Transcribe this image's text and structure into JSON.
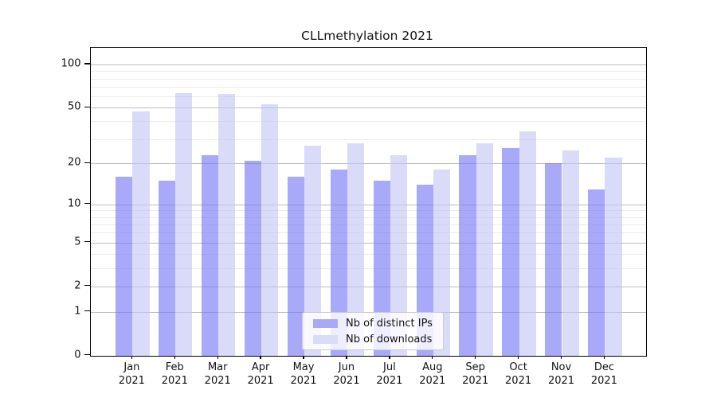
{
  "chart_data": {
    "type": "bar",
    "title": "CLLmethylation 2021",
    "categories": [
      "Jan",
      "Feb",
      "Mar",
      "Apr",
      "May",
      "Jun",
      "Jul",
      "Aug",
      "Sep",
      "Oct",
      "Nov",
      "Dec"
    ],
    "category_year": "2021",
    "series": [
      {
        "name": "Nb of distinct IPs",
        "swatch_color": "#a8aaf5",
        "bar_color": "rgba(115,117,243,0.62)",
        "values": [
          16,
          15,
          23,
          21,
          16,
          18,
          15,
          14,
          23,
          26,
          20,
          13
        ]
      },
      {
        "name": "Nb of downloads",
        "swatch_color": "#d9dbf9",
        "bar_color": "rgba(194,197,246,0.62)",
        "values": [
          47,
          63,
          62,
          53,
          27,
          28,
          23,
          18,
          28,
          34,
          25,
          22
        ]
      }
    ],
    "yscale": "log10(value+1)",
    "ylim": [
      0,
      132
    ],
    "ytick_values": [
      100,
      50,
      20,
      10,
      5,
      2,
      1,
      0
    ],
    "ytick_labels": [
      "100",
      "50",
      "20",
      "10",
      "5",
      "2",
      "1",
      "0"
    ],
    "minor_gridline_values": [
      3,
      4,
      6,
      7,
      8,
      9,
      30,
      40,
      60,
      70,
      80,
      90
    ],
    "grid": "horizontal",
    "legend_position": "lower center"
  }
}
